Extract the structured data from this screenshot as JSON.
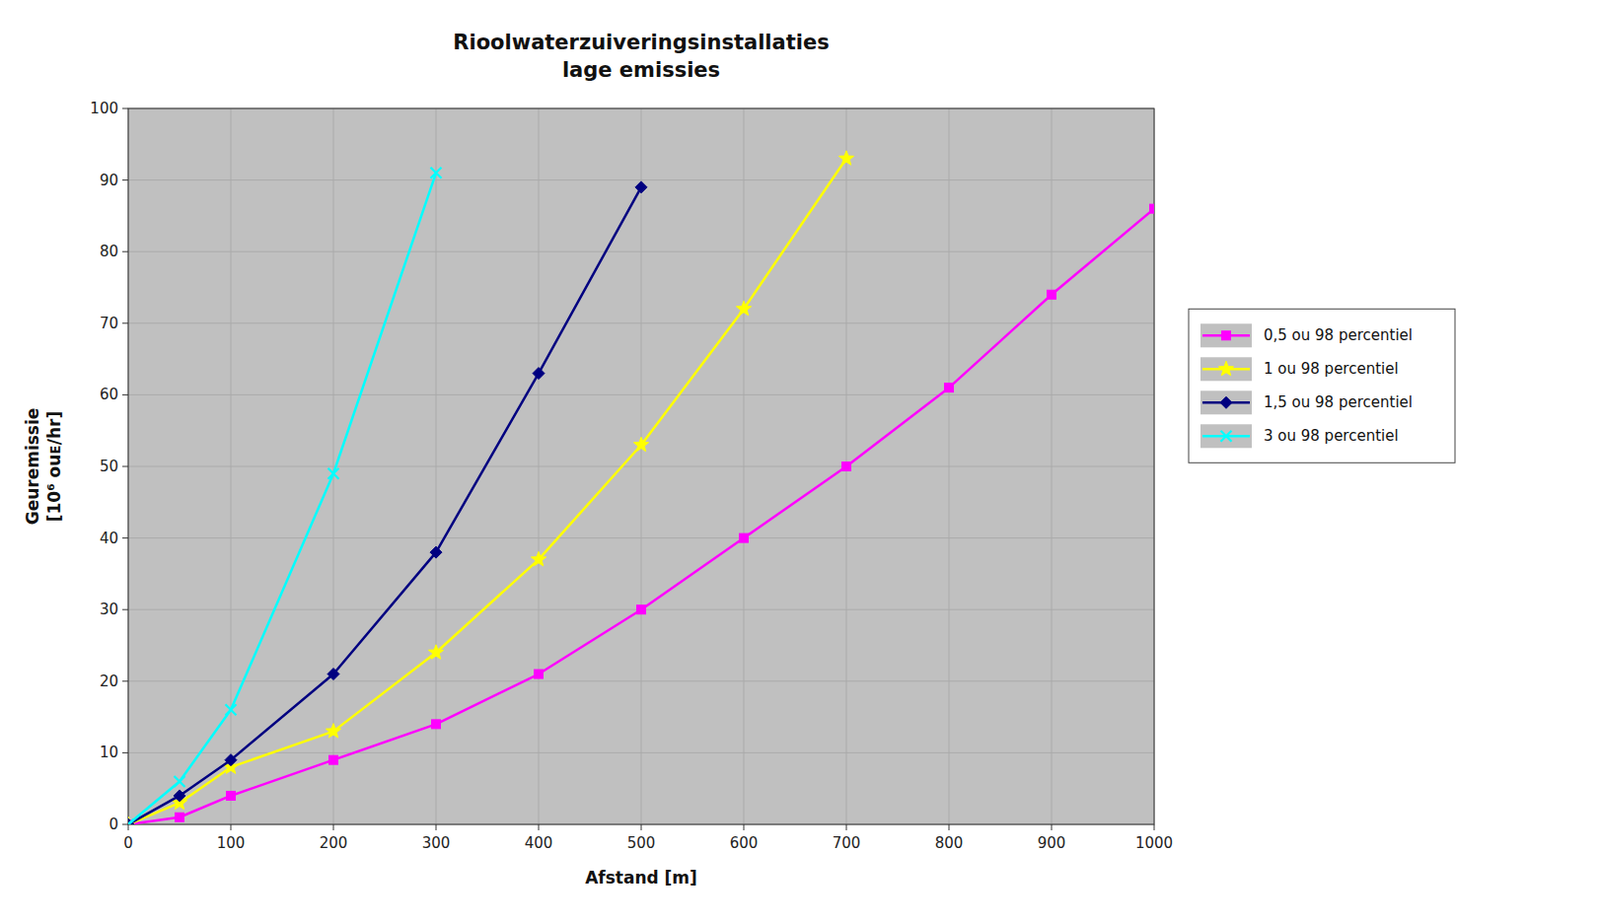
{
  "chart_data": {
    "type": "line",
    "title": "Rioolwaterzuiveringsinstallaties",
    "subtitle": "lage emissies",
    "xlabel": "Afstand [m]",
    "ylabel": "Geuremissie\n[10⁶ ouᴇ/hr]",
    "xlim": [
      0,
      1000
    ],
    "ylim": [
      0,
      100
    ],
    "xticks": [
      0,
      100,
      200,
      300,
      400,
      500,
      600,
      700,
      800,
      900,
      1000
    ],
    "yticks": [
      0,
      10,
      20,
      30,
      40,
      50,
      60,
      70,
      80,
      90,
      100
    ],
    "grid": true,
    "legend": "right",
    "series": [
      {
        "name": "0,5 ou 98 percentiel",
        "color": "#ff00ff",
        "marker": "square",
        "x": [
          0,
          50,
          100,
          200,
          300,
          400,
          500,
          600,
          700,
          800,
          900,
          1000
        ],
        "values": [
          0,
          1,
          4,
          9,
          14,
          21,
          30,
          40,
          50,
          61,
          74,
          86
        ]
      },
      {
        "name": "1 ou 98 percentiel",
        "color": "#ffff00",
        "marker": "star",
        "x": [
          0,
          50,
          100,
          200,
          300,
          400,
          500,
          600,
          700
        ],
        "values": [
          0,
          3,
          8,
          13,
          24,
          37,
          53,
          72,
          93
        ]
      },
      {
        "name": "1,5 ou 98 percentiel",
        "color": "#000080",
        "marker": "diamond",
        "x": [
          0,
          50,
          100,
          200,
          300,
          400,
          500
        ],
        "values": [
          0,
          4,
          9,
          21,
          38,
          63,
          89
        ]
      },
      {
        "name": "3 ou 98 percentiel",
        "color": "#00ffff",
        "marker": "x",
        "x": [
          0,
          50,
          100,
          200,
          300
        ],
        "values": [
          0,
          6,
          16,
          49,
          91
        ]
      }
    ]
  }
}
